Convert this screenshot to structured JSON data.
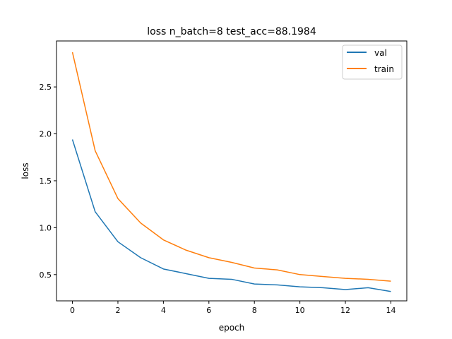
{
  "chart_data": {
    "type": "line",
    "title": "loss n_batch=8 test_acc=88.1984",
    "xlabel": "epoch",
    "ylabel": "loss",
    "xlim": [
      -0.7,
      14.7
    ],
    "ylim": [
      0.22,
      2.99
    ],
    "x": [
      0,
      1,
      2,
      3,
      4,
      5,
      6,
      7,
      8,
      9,
      10,
      11,
      12,
      13,
      14
    ],
    "xticks": [
      0,
      2,
      4,
      6,
      8,
      10,
      12,
      14
    ],
    "yticks": [
      0.5,
      1.0,
      1.5,
      2.0,
      2.5
    ],
    "xtick_labels": [
      "0",
      "2",
      "4",
      "6",
      "8",
      "10",
      "12",
      "14"
    ],
    "ytick_labels": [
      "0.5",
      "1.0",
      "1.5",
      "2.0",
      "2.5"
    ],
    "series": [
      {
        "name": "val",
        "color": "#1f77b4",
        "values": [
          1.94,
          1.17,
          0.85,
          0.68,
          0.56,
          0.51,
          0.46,
          0.45,
          0.4,
          0.39,
          0.37,
          0.36,
          0.34,
          0.36,
          0.32
        ]
      },
      {
        "name": "train",
        "color": "#ff7f0e",
        "values": [
          2.87,
          1.82,
          1.31,
          1.05,
          0.87,
          0.76,
          0.68,
          0.63,
          0.57,
          0.55,
          0.5,
          0.48,
          0.46,
          0.45,
          0.43
        ]
      }
    ],
    "legend": "top-right",
    "grid": false
  }
}
